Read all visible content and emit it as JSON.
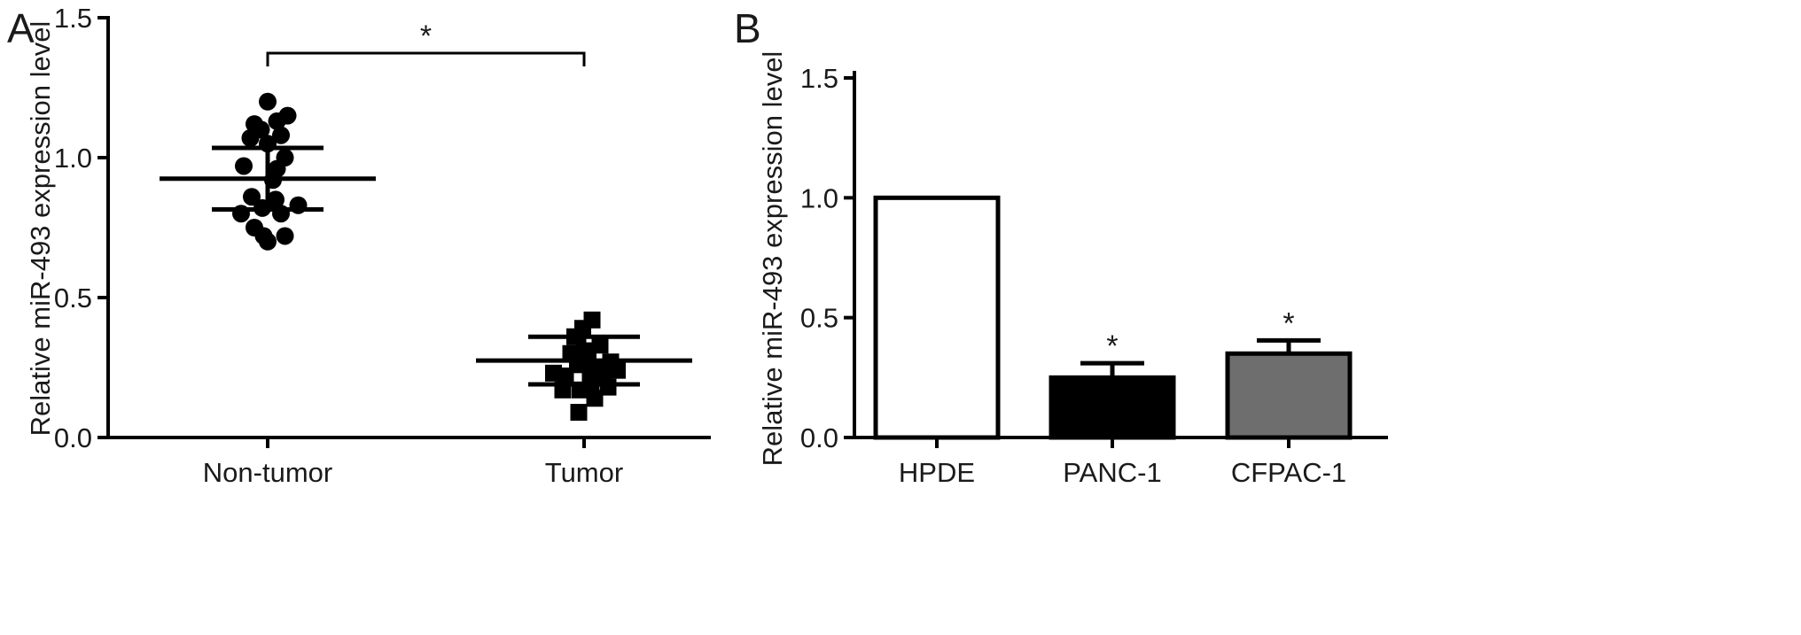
{
  "colors": {
    "ink": "#000000",
    "bar_white": "#ffffff",
    "bar_black": "#000000",
    "bar_gray": "#6e6e6e"
  },
  "panels": [
    {
      "letter": "A",
      "ylabel": "Relative miR-493 expression level",
      "significance": "*"
    },
    {
      "letter": "B",
      "ylabel": "Relative miR-493 expression level"
    }
  ],
  "chart_data": [
    {
      "type": "scatter",
      "ylim": [
        0,
        1.5
      ],
      "yticks": [
        "0.0",
        "0.5",
        "1.0",
        "1.5"
      ],
      "ylabel": "Relative miR-493 expression level",
      "categories": [
        "Non-tumor",
        "Tumor"
      ],
      "significance_bracket": {
        "between": [
          "Non-tumor",
          "Tumor"
        ],
        "label": "*"
      },
      "series": [
        {
          "category": "Non-tumor",
          "marker": "circle",
          "values": [
            1.2,
            1.15,
            1.12,
            1.13,
            1.1,
            1.08,
            1.07,
            1.05,
            1.0,
            0.97,
            0.96,
            0.92,
            0.86,
            0.85,
            0.83,
            0.82,
            0.8,
            0.8,
            0.75,
            0.72,
            0.72,
            0.7
          ],
          "offsets": [
            0.0,
            0.15,
            -0.1,
            0.07,
            -0.05,
            0.1,
            -0.13,
            0.0,
            0.13,
            -0.18,
            0.07,
            0.04,
            -0.12,
            0.06,
            0.23,
            -0.04,
            -0.2,
            0.1,
            -0.1,
            -0.03,
            0.13,
            0.0
          ],
          "mean": 0.925,
          "sd_upper": 1.035,
          "sd_lower": 0.815
        },
        {
          "category": "Tumor",
          "marker": "square",
          "values": [
            0.42,
            0.39,
            0.36,
            0.33,
            0.31,
            0.3,
            0.29,
            0.27,
            0.26,
            0.24,
            0.24,
            0.23,
            0.22,
            0.22,
            0.19,
            0.18,
            0.17,
            0.17,
            0.14,
            0.09
          ],
          "offsets": [
            0.06,
            -0.01,
            -0.07,
            0.12,
            0.0,
            -0.1,
            0.03,
            0.2,
            -0.05,
            0.08,
            0.25,
            -0.23,
            -0.14,
            0.14,
            0.05,
            0.18,
            -0.16,
            -0.03,
            0.08,
            -0.04
          ],
          "mean": 0.275,
          "sd_upper": 0.36,
          "sd_lower": 0.19
        }
      ]
    },
    {
      "type": "bar",
      "ylim": [
        0,
        1.5
      ],
      "yticks": [
        "0.0",
        "0.5",
        "1.0",
        "1.5"
      ],
      "ylabel": "Relative miR-493 expression level",
      "categories": [
        "HPDE",
        "PANC-1",
        "CFPAC-1"
      ],
      "values": [
        1.0,
        0.25,
        0.35
      ],
      "errors": [
        0.0,
        0.06,
        0.055
      ],
      "fills": [
        "#ffffff",
        "#000000",
        "#6e6e6e"
      ],
      "significance": [
        "",
        "*",
        "*"
      ]
    }
  ]
}
